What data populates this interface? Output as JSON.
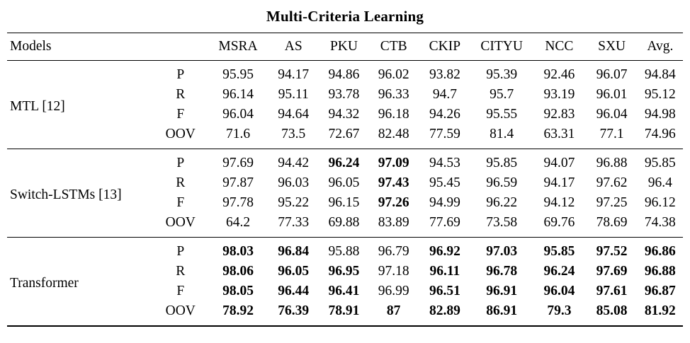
{
  "title": "Multi-Criteria Learning",
  "columns": {
    "models_label": "Models",
    "metric_label": "",
    "datasets": [
      "MSRA",
      "AS",
      "PKU",
      "CTB",
      "CKIP",
      "CITYU",
      "NCC",
      "SXU",
      "Avg."
    ]
  },
  "groups": [
    {
      "model": "MTL [12]",
      "rows": [
        {
          "metric": "P",
          "values": [
            "95.95",
            "94.17",
            "94.86",
            "96.02",
            "93.82",
            "95.39",
            "92.46",
            "96.07",
            "94.84"
          ],
          "bold": []
        },
        {
          "metric": "R",
          "values": [
            "96.14",
            "95.11",
            "93.78",
            "96.33",
            "94.7",
            "95.7",
            "93.19",
            "96.01",
            "95.12"
          ],
          "bold": []
        },
        {
          "metric": "F",
          "values": [
            "96.04",
            "94.64",
            "94.32",
            "96.18",
            "94.26",
            "95.55",
            "92.83",
            "96.04",
            "94.98"
          ],
          "bold": []
        },
        {
          "metric": "OOV",
          "values": [
            "71.6",
            "73.5",
            "72.67",
            "82.48",
            "77.59",
            "81.4",
            "63.31",
            "77.1",
            "74.96"
          ],
          "bold": []
        }
      ]
    },
    {
      "model": "Switch-LSTMs [13]",
      "rows": [
        {
          "metric": "P",
          "values": [
            "97.69",
            "94.42",
            "96.24",
            "97.09",
            "94.53",
            "95.85",
            "94.07",
            "96.88",
            "95.85"
          ],
          "bold": [
            2,
            3
          ]
        },
        {
          "metric": "R",
          "values": [
            "97.87",
            "96.03",
            "96.05",
            "97.43",
            "95.45",
            "96.59",
            "94.17",
            "97.62",
            "96.4"
          ],
          "bold": [
            3
          ]
        },
        {
          "metric": "F",
          "values": [
            "97.78",
            "95.22",
            "96.15",
            "97.26",
            "94.99",
            "96.22",
            "94.12",
            "97.25",
            "96.12"
          ],
          "bold": [
            3
          ]
        },
        {
          "metric": "OOV",
          "values": [
            "64.2",
            "77.33",
            "69.88",
            "83.89",
            "77.69",
            "73.58",
            "69.76",
            "78.69",
            "74.38"
          ],
          "bold": []
        }
      ]
    },
    {
      "model": "Transformer",
      "rows": [
        {
          "metric": "P",
          "values": [
            "98.03",
            "96.84",
            "95.88",
            "96.79",
            "96.92",
            "97.03",
            "95.85",
            "97.52",
            "96.86"
          ],
          "bold": [
            0,
            1,
            4,
            5,
            6,
            7,
            8
          ]
        },
        {
          "metric": "R",
          "values": [
            "98.06",
            "96.05",
            "96.95",
            "97.18",
            "96.11",
            "96.78",
            "96.24",
            "97.69",
            "96.88"
          ],
          "bold": [
            0,
            1,
            2,
            4,
            5,
            6,
            7,
            8
          ]
        },
        {
          "metric": "F",
          "values": [
            "98.05",
            "96.44",
            "96.41",
            "96.99",
            "96.51",
            "96.91",
            "96.04",
            "97.61",
            "96.87"
          ],
          "bold": [
            0,
            1,
            2,
            4,
            5,
            6,
            7,
            8
          ]
        },
        {
          "metric": "OOV",
          "values": [
            "78.92",
            "76.39",
            "78.91",
            "87",
            "82.89",
            "86.91",
            "79.3",
            "85.08",
            "81.92"
          ],
          "bold": [
            0,
            1,
            2,
            3,
            4,
            5,
            6,
            7,
            8
          ]
        }
      ]
    }
  ]
}
